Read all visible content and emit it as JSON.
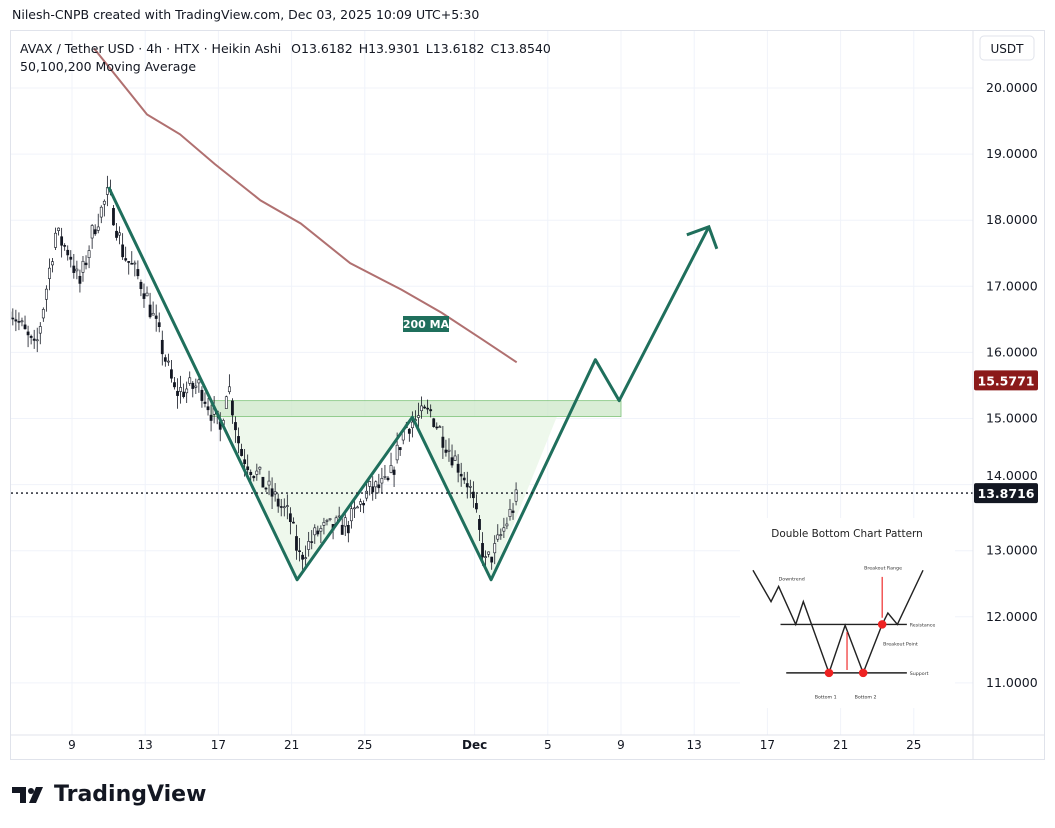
{
  "credit": "Nilesh-CNPB created with TradingView.com, Dec 03, 2025 10:09 UTC+5:30",
  "legend": {
    "symbol": "AVAX / Tether USD · 4h · HTX · Heikin Ashi",
    "o": "O13.6182",
    "h": "H13.9301",
    "l": "L13.6182",
    "c": "C13.8540",
    "indicator": "50,100,200 Moving Average"
  },
  "currency_button": "USDT",
  "brand": "TradingView",
  "colors": {
    "pattern": "#1f6f5c",
    "ma": "#b07070",
    "zone": "#c9e6c4",
    "last_price": "#131722",
    "ma_label": "#8b1a1a"
  },
  "chart_data": {
    "type": "candlestick",
    "ylim": [
      10.4,
      20.8
    ],
    "y_ticks": [
      {
        "v": 20,
        "label": "20.0000"
      },
      {
        "v": 19,
        "label": "19.0000"
      },
      {
        "v": 18,
        "label": "18.0000"
      },
      {
        "v": 17,
        "label": "17.0000"
      },
      {
        "v": 16,
        "label": "16.0000"
      },
      {
        "v": 15,
        "label": "15.0000"
      },
      {
        "v": 14,
        "label": "14.0000"
      },
      {
        "v": 13,
        "label": "13.0000"
      },
      {
        "v": 12,
        "label": "12.0000"
      },
      {
        "v": 11,
        "label": "11.0000"
      }
    ],
    "x_ticks": [
      {
        "d": 9,
        "label": "9"
      },
      {
        "d": 13,
        "label": "13"
      },
      {
        "d": 17,
        "label": "17"
      },
      {
        "d": 21,
        "label": "21"
      },
      {
        "d": 25,
        "label": "25"
      },
      {
        "d": 31,
        "label": "Dec"
      },
      {
        "d": 35,
        "label": "5"
      },
      {
        "d": 39,
        "label": "9"
      },
      {
        "d": 43,
        "label": "13"
      },
      {
        "d": 47,
        "label": "17"
      },
      {
        "d": 51,
        "label": "21"
      },
      {
        "d": 55,
        "label": "25"
      }
    ],
    "price_path": [
      [
        5.6,
        16.7
      ],
      [
        7,
        16.0
      ],
      [
        8.1,
        17.8
      ],
      [
        8.9,
        17.5
      ],
      [
        9.4,
        17.0
      ],
      [
        10.2,
        17.9
      ],
      [
        11.0,
        18.4
      ],
      [
        11.8,
        17.5
      ],
      [
        12.9,
        17.0
      ],
      [
        13.8,
        16.2
      ],
      [
        14.6,
        15.4
      ],
      [
        16.0,
        15.5
      ],
      [
        17.1,
        14.8
      ],
      [
        17.5,
        15.6
      ],
      [
        18.2,
        14.5
      ],
      [
        19.5,
        14.0
      ],
      [
        20.9,
        13.5
      ],
      [
        21.4,
        12.9
      ],
      [
        22.5,
        13.3
      ],
      [
        24.1,
        13.4
      ],
      [
        25.2,
        13.9
      ],
      [
        26.3,
        14.0
      ],
      [
        27.2,
        14.9
      ],
      [
        28.6,
        15.1
      ],
      [
        29.7,
        14.5
      ],
      [
        30.7,
        14.0
      ],
      [
        31.6,
        12.8
      ],
      [
        32.1,
        13.0
      ],
      [
        33.0,
        13.6
      ],
      [
        33.4,
        13.85
      ]
    ],
    "ma200": [
      [
        10.2,
        20.6
      ],
      [
        13.1,
        19.6
      ],
      [
        14.9,
        19.3
      ],
      [
        16.8,
        18.85
      ],
      [
        19.3,
        18.3
      ],
      [
        21.5,
        17.95
      ],
      [
        24.2,
        17.35
      ],
      [
        27.0,
        16.95
      ],
      [
        29.2,
        16.6
      ],
      [
        31.4,
        16.2
      ],
      [
        33.3,
        15.85
      ]
    ],
    "ma_label": "200 MA",
    "ma_value": "15.5771",
    "last_price": 13.8716,
    "last_price_label": "13.8716",
    "resistance_zone": {
      "from": 16.6,
      "to": 39,
      "top": 15.27,
      "bottom": 15.03
    },
    "projection": [
      [
        11.0,
        18.5
      ],
      [
        21.3,
        12.56
      ],
      [
        27.6,
        15.02
      ],
      [
        31.9,
        12.56
      ],
      [
        37.6,
        15.89
      ],
      [
        38.9,
        15.27
      ],
      [
        43.8,
        17.9
      ]
    ],
    "inset": {
      "title": "Double Bottom Chart Pattern",
      "labels": [
        "Downtrend",
        "Breakout Range",
        "Resistance",
        "Breakout Point",
        "Support",
        "Bottom 1",
        "Bottom 2"
      ]
    }
  }
}
